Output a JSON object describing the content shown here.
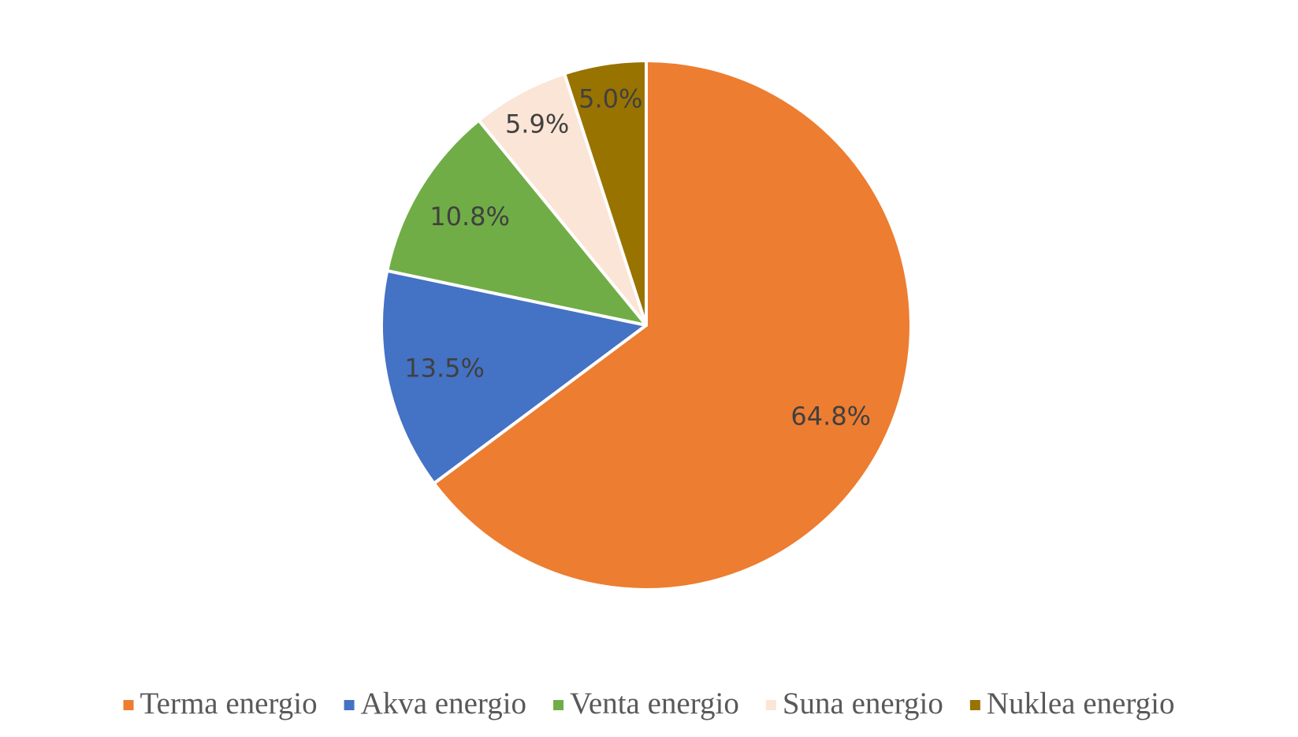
{
  "chart_data": {
    "type": "pie",
    "categories": [
      "Terma energio",
      "Akva energio",
      "Venta energio",
      "Suna energio",
      "Nuklea energio"
    ],
    "values": [
      64.8,
      13.5,
      10.8,
      5.9,
      5.0
    ],
    "value_labels": [
      "64.8%",
      "13.5%",
      "10.8%",
      "5.9%",
      "5.0%"
    ],
    "colors": [
      "#ed7d31",
      "#4472c4",
      "#70ad47",
      "#fbe5d6",
      "#997300"
    ],
    "legend": "bottom"
  }
}
